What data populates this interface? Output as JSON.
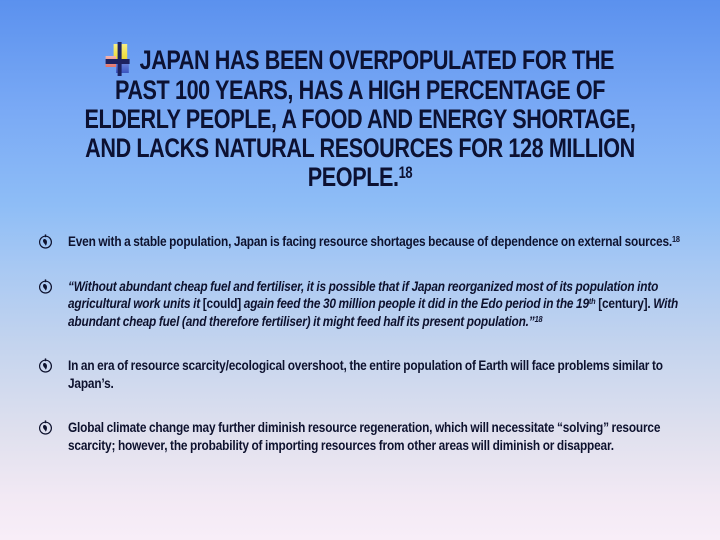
{
  "slide": {
    "title": {
      "lines": [
        "JAPAN HAS BEEN OVERPOPULATED FOR THE",
        "PAST 100 YEARS, HAS A HIGH PERCENTAGE OF",
        "ELDERLY PEOPLE, A FOOD AND ENERGY SHORTAGE,",
        "AND LACKS NATURAL RESOURCES FOR 128 MILLION",
        "PEOPLE."
      ],
      "footnote_ref": "18",
      "bullet_icon": "colored-cross-icon"
    },
    "bullets": [
      {
        "marker_icon": "globe-bullet-icon",
        "segments": [
          {
            "t": "Even with a stable population, Japan is facing resource shortages because of dependence on external sources."
          },
          {
            "t": "18",
            "sup": true
          }
        ]
      },
      {
        "marker_icon": "globe-bullet-icon",
        "segments": [
          {
            "t": "“Without abundant cheap fuel and fertiliser, it is possible that if Japan reorganized most of its population into agricultural work units it ",
            "italic": true
          },
          {
            "t": "[could]"
          },
          {
            "t": " again feed the 30 million people it did in the Edo period in the 19",
            "italic": true
          },
          {
            "t": "th",
            "italic": true,
            "sup": true
          },
          {
            "t": " ",
            "italic": true
          },
          {
            "t": "[century]."
          },
          {
            "t": "  With abundant cheap fuel (and therefore fertiliser) it might feed half its present population.”",
            "italic": true
          },
          {
            "t": "18",
            "italic": true,
            "sup": true
          }
        ]
      },
      {
        "marker_icon": "globe-bullet-icon",
        "segments": [
          {
            "t": "In an era of resource scarcity/ecological overshoot, the entire population of Earth will face problems similar to Japan’s."
          }
        ]
      },
      {
        "marker_icon": "globe-bullet-icon",
        "segments": [
          {
            "t": "Global climate change may further diminish resource regeneration, which will necessitate “solving” resource scarcity; however, the probability of importing resources from other areas will diminish or disappear."
          }
        ]
      }
    ],
    "colors": {
      "background_top": "#5b91ee",
      "background_bottom": "#f8eef8",
      "title_text": "#0c1132",
      "body_text": "#0e122e",
      "icon_yellow": "#eeda33",
      "icon_pink": "#e2736a",
      "icon_blue": "#3a55c0",
      "icon_navy": "#1d2260"
    }
  }
}
